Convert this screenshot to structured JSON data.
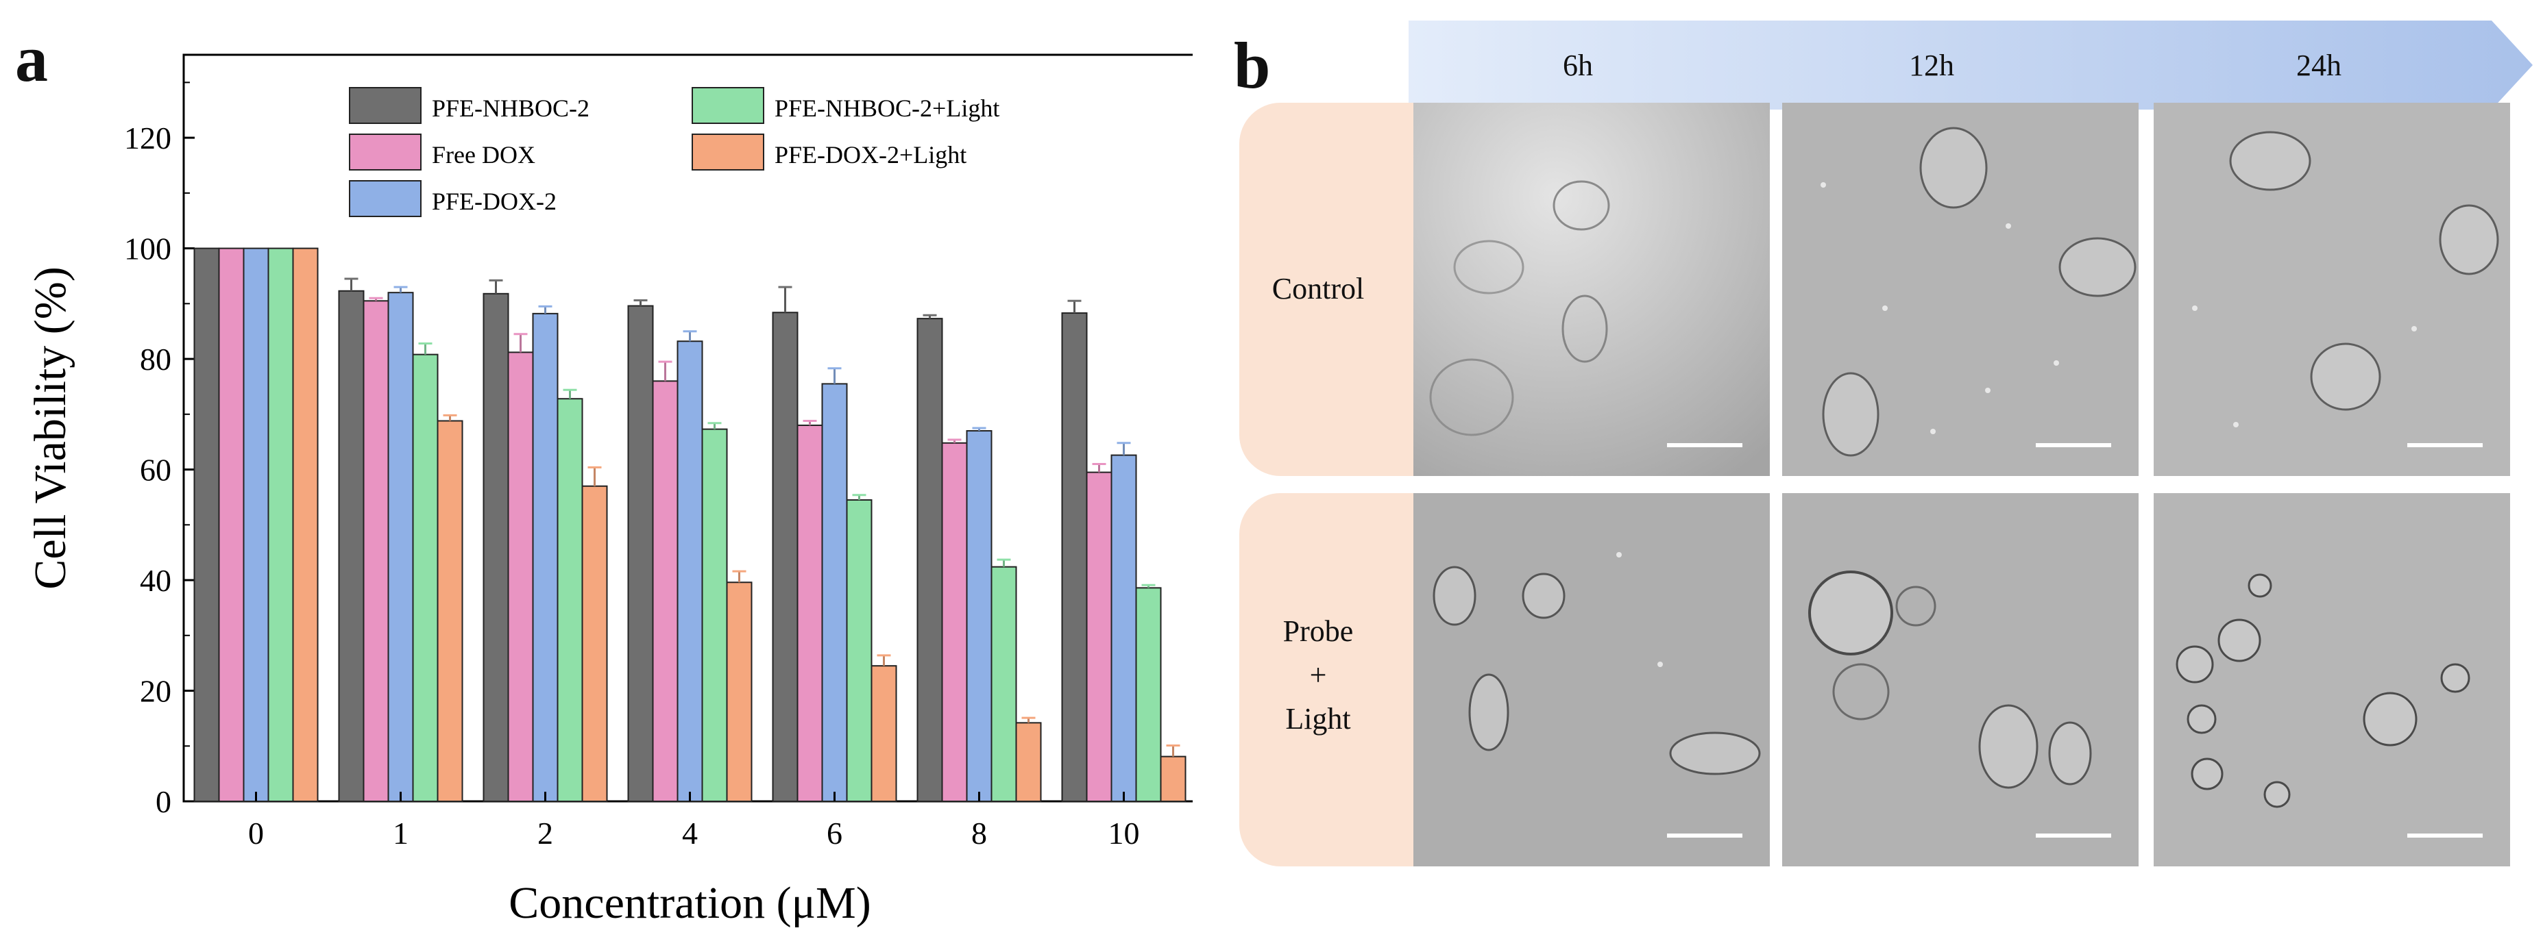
{
  "panel_a": {
    "letter": "a",
    "chart_data": {
      "type": "bar",
      "categories": [
        "0",
        "1",
        "2",
        "4",
        "6",
        "8",
        "10"
      ],
      "xlabel": "Concentration (μM)",
      "ylabel": "Cell Viability (%)",
      "ylim": [
        0,
        135
      ],
      "yticks": [
        0,
        20,
        40,
        60,
        80,
        100,
        120
      ],
      "legend_position": "top",
      "series": [
        {
          "name": "PFE-NHBOC-2",
          "color": "#6f6f6f",
          "values": [
            100,
            92.3,
            91.8,
            89.6,
            88.4,
            87.3,
            88.3
          ],
          "errors": [
            0,
            2.2,
            2.4,
            1.0,
            4.6,
            0.6,
            2.2
          ]
        },
        {
          "name": "Free DOX",
          "color": "#e994c2",
          "values": [
            100,
            90.5,
            81.2,
            76,
            68,
            64.8,
            59.5
          ],
          "errors": [
            0,
            0.5,
            3.3,
            3.5,
            0.8,
            0.6,
            1.5
          ]
        },
        {
          "name": "PFE-DOX-2",
          "color": "#8fb0e6",
          "values": [
            100,
            92.0,
            88.2,
            83.2,
            75.5,
            67.0,
            62.6
          ],
          "errors": [
            0,
            1.0,
            1.3,
            1.8,
            2.8,
            0.5,
            2.2
          ]
        },
        {
          "name": "PFE-NHBOC-2+Light",
          "color": "#8fe0a8",
          "values": [
            100,
            80.8,
            72.8,
            67.3,
            54.5,
            42.4,
            38.6
          ],
          "errors": [
            0,
            2.0,
            1.6,
            1.1,
            0.9,
            1.3,
            0.5
          ]
        },
        {
          "name": "PFE-DOX-2+Light",
          "color": "#f5a77e",
          "values": [
            100,
            68.8,
            57.0,
            39.6,
            24.5,
            14.2,
            8.1
          ],
          "errors": [
            0,
            1.0,
            3.4,
            2.0,
            1.9,
            0.9,
            2.0
          ]
        }
      ]
    }
  },
  "panel_b": {
    "letter": "b",
    "time_labels": [
      "6h",
      "12h",
      "24h"
    ],
    "rows": [
      {
        "label_lines": [
          "Control"
        ]
      },
      {
        "label_lines": [
          "Probe",
          "+",
          "Light"
        ]
      }
    ]
  }
}
